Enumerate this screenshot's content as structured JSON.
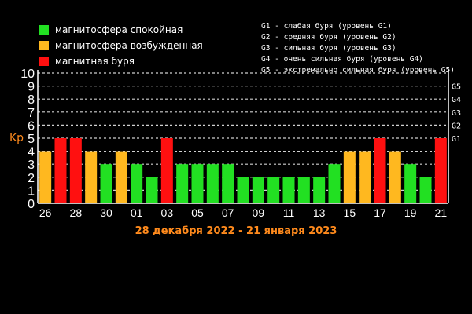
{
  "legend": {
    "items": [
      {
        "label": "магнитосфера спокойная",
        "color": "#22e022"
      },
      {
        "label": "магнитосфера возбужденная",
        "color": "#ffb81f"
      },
      {
        "label": "магнитная буря",
        "color": "#ff1010"
      }
    ]
  },
  "g_levels": [
    "G1 - слабая буря (уровень G1)",
    "G2 - средняя буря (уровень G2)",
    "G3 - сильная буря (уровень G3)",
    "G4 - очень сильная буря (уровень G4)",
    "G5 - экстремально сильная буря (уровень G5)"
  ],
  "chart_data": {
    "type": "bar",
    "ylabel": "Kp",
    "ylim": [
      0,
      10
    ],
    "yticks": [
      0,
      1,
      2,
      3,
      4,
      5,
      6,
      7,
      8,
      9,
      10
    ],
    "right_ticks": [
      {
        "value": 5,
        "label": "G1"
      },
      {
        "value": 6,
        "label": "G2"
      },
      {
        "value": 7,
        "label": "G3"
      },
      {
        "value": 8,
        "label": "G4"
      },
      {
        "value": 9,
        "label": "G5"
      }
    ],
    "xtick_labels": [
      {
        "index": 1,
        "label": "26"
      },
      {
        "index": 3,
        "label": "28"
      },
      {
        "index": 5,
        "label": "30"
      },
      {
        "index": 7,
        "label": "01"
      },
      {
        "index": 9,
        "label": "03"
      },
      {
        "index": 11,
        "label": "05"
      },
      {
        "index": 13,
        "label": "07"
      },
      {
        "index": 15,
        "label": "09"
      },
      {
        "index": 17,
        "label": "11"
      },
      {
        "index": 19,
        "label": "13"
      },
      {
        "index": 21,
        "label": "15"
      },
      {
        "index": 23,
        "label": "17"
      },
      {
        "index": 25,
        "label": "19"
      },
      {
        "index": 27,
        "label": "21"
      }
    ],
    "values": [
      4,
      5,
      5,
      4,
      3,
      4,
      3,
      2,
      5,
      3,
      3,
      3,
      3,
      2,
      2,
      2,
      2,
      2,
      2,
      3,
      4,
      4,
      5,
      4,
      3,
      2,
      5
    ],
    "colors": [
      "#ffb81f",
      "#ff1010",
      "#ff1010",
      "#ffb81f",
      "#22e022",
      "#ffb81f",
      "#22e022",
      "#22e022",
      "#ff1010",
      "#22e022",
      "#22e022",
      "#22e022",
      "#22e022",
      "#22e022",
      "#22e022",
      "#22e022",
      "#22e022",
      "#22e022",
      "#22e022",
      "#22e022",
      "#ffb81f",
      "#ffb81f",
      "#ff1010",
      "#ffb81f",
      "#22e022",
      "#22e022",
      "#ff1010"
    ],
    "xlabel": "28 декабря 2022 - 21 января 2023",
    "grid": true
  }
}
